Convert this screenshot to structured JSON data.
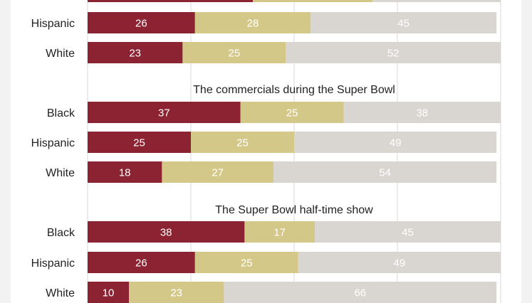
{
  "chart_data": {
    "type": "bar",
    "orientation": "horizontal",
    "stacked": true,
    "xlim": [
      0,
      100
    ],
    "grid": true,
    "colors": [
      "#8b2332",
      "#d4c888",
      "#d9d5d1"
    ],
    "sections": [
      {
        "title": "",
        "rows": [
          {
            "label": "",
            "values": [
              40,
              29,
              31
            ]
          },
          {
            "label": "Hispanic",
            "values": [
              26,
              28,
              45
            ]
          },
          {
            "label": "White",
            "values": [
              23,
              25,
              52
            ]
          }
        ]
      },
      {
        "title": "The commercials during the Super Bowl",
        "rows": [
          {
            "label": "Black",
            "values": [
              37,
              25,
              38
            ]
          },
          {
            "label": "Hispanic",
            "values": [
              25,
              25,
              49
            ]
          },
          {
            "label": "White",
            "values": [
              18,
              27,
              54
            ]
          }
        ]
      },
      {
        "title": "The Super Bowl half-time show",
        "rows": [
          {
            "label": "Black",
            "values": [
              38,
              17,
              45
            ]
          },
          {
            "label": "Hispanic",
            "values": [
              26,
              25,
              49
            ]
          },
          {
            "label": "White",
            "values": [
              10,
              23,
              66
            ]
          }
        ]
      }
    ]
  }
}
